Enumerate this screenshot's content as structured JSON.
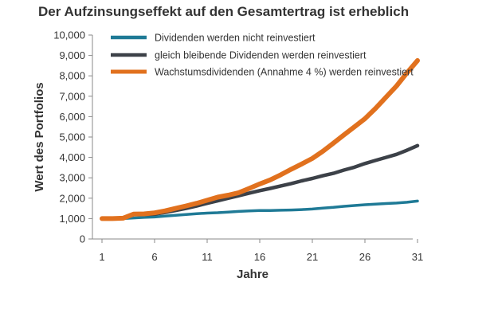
{
  "chart_data": {
    "type": "line",
    "title": "Der Aufzinsungseffekt auf den Gesamtertrag ist erheblich",
    "xlabel": "Jahre",
    "ylabel": "Wert des Portfolios",
    "xlim": [
      1,
      31
    ],
    "ylim": [
      0,
      10000
    ],
    "xticks": [
      1,
      6,
      11,
      16,
      21,
      26,
      31
    ],
    "xtick_labels": [
      "1",
      "6",
      "11",
      "16",
      "21",
      "26",
      "31"
    ],
    "yticks": [
      0,
      1000,
      2000,
      3000,
      4000,
      5000,
      6000,
      7000,
      8000,
      9000,
      10000
    ],
    "ytick_labels": [
      "0",
      "1,000",
      "2,000",
      "3,000",
      "4,000",
      "5,000",
      "6,000",
      "7,000",
      "8,000",
      "9,000",
      "10,000"
    ],
    "grid": false,
    "legend_position": "top-left",
    "x": [
      1,
      2,
      3,
      4,
      5,
      6,
      7,
      8,
      9,
      10,
      11,
      12,
      13,
      14,
      15,
      16,
      17,
      18,
      19,
      20,
      21,
      22,
      23,
      24,
      25,
      26,
      27,
      28,
      29,
      30,
      31
    ],
    "series": [
      {
        "name": "Dividenden werden nicht reinvestiert",
        "color": "#1f7a96",
        "values": [
          1000,
          1000,
          1000,
          1030,
          1060,
          1080,
          1120,
          1160,
          1200,
          1240,
          1270,
          1290,
          1320,
          1350,
          1380,
          1400,
          1400,
          1410,
          1420,
          1440,
          1470,
          1510,
          1550,
          1600,
          1640,
          1680,
          1710,
          1740,
          1760,
          1800,
          1860
        ]
      },
      {
        "name": "gleich bleibende Dividenden werden reinvestiert",
        "color": "#3c4148",
        "values": [
          1000,
          1000,
          1020,
          1200,
          1200,
          1220,
          1300,
          1400,
          1500,
          1620,
          1750,
          1870,
          2000,
          2120,
          2250,
          2370,
          2480,
          2600,
          2720,
          2850,
          2970,
          3100,
          3220,
          3380,
          3520,
          3700,
          3850,
          4000,
          4150,
          4350,
          4580
        ]
      },
      {
        "name": "Wachstumsdividenden (Annahme 4 %) werden reinvestiert",
        "color": "#e1711e",
        "values": [
          1000,
          1000,
          1020,
          1220,
          1230,
          1280,
          1380,
          1500,
          1620,
          1750,
          1900,
          2050,
          2150,
          2270,
          2480,
          2700,
          2900,
          3150,
          3420,
          3680,
          3950,
          4300,
          4700,
          5100,
          5500,
          5900,
          6400,
          6950,
          7500,
          8150,
          8750
        ]
      }
    ]
  }
}
